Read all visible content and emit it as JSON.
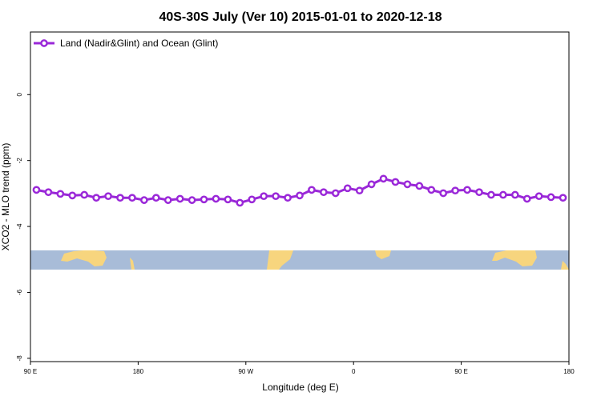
{
  "chart_data": {
    "type": "line",
    "title": "40S-30S July (Ver 10)   2015-01-01 to 2020-12-18",
    "x_label": "Longitude (deg E)",
    "y_label": "XCO2 - MLO trend (ppm)",
    "legend": "topleft",
    "xlim": [
      90,
      540
    ],
    "xticks": [
      {
        "value": 90,
        "label": "90 E"
      },
      180,
      {
        "value": 270,
        "label": "90 W"
      },
      {
        "value": 360,
        "label": "0"
      },
      {
        "value": 450,
        "label": "90 E"
      },
      {
        "value": 540,
        "label": "180"
      }
    ],
    "ylim": [
      -8.1,
      1.9
    ],
    "yticks": [
      0,
      -2,
      -4,
      -6,
      -8
    ],
    "x": [
      95,
      105,
      115,
      125,
      135,
      145,
      155,
      165,
      175,
      185,
      195,
      205,
      215,
      225,
      235,
      245,
      255,
      265,
      275,
      285,
      295,
      305,
      315,
      325,
      335,
      345,
      355,
      365,
      375,
      385,
      395,
      405,
      415,
      425,
      435,
      445,
      455,
      465,
      475,
      485,
      495,
      505,
      515,
      525,
      535
    ],
    "series": [
      {
        "name": "Land (Nadir&Glint) and Ocean (Glint)",
        "color": "#9a28d8",
        "values": [
          -2.89,
          -2.96,
          -3.01,
          -3.06,
          -3.04,
          -3.13,
          -3.08,
          -3.13,
          -3.13,
          -3.2,
          -3.13,
          -3.2,
          -3.16,
          -3.2,
          -3.18,
          -3.16,
          -3.18,
          -3.28,
          -3.18,
          -3.08,
          -3.08,
          -3.13,
          -3.06,
          -2.89,
          -2.96,
          -2.99,
          -2.84,
          -2.91,
          -2.72,
          -2.55,
          -2.65,
          -2.72,
          -2.77,
          -2.89,
          -2.99,
          -2.91,
          -2.89,
          -2.96,
          -3.04,
          -3.04,
          -3.04,
          -3.16,
          -3.08,
          -3.11,
          -3.13
        ]
      }
    ]
  }
}
